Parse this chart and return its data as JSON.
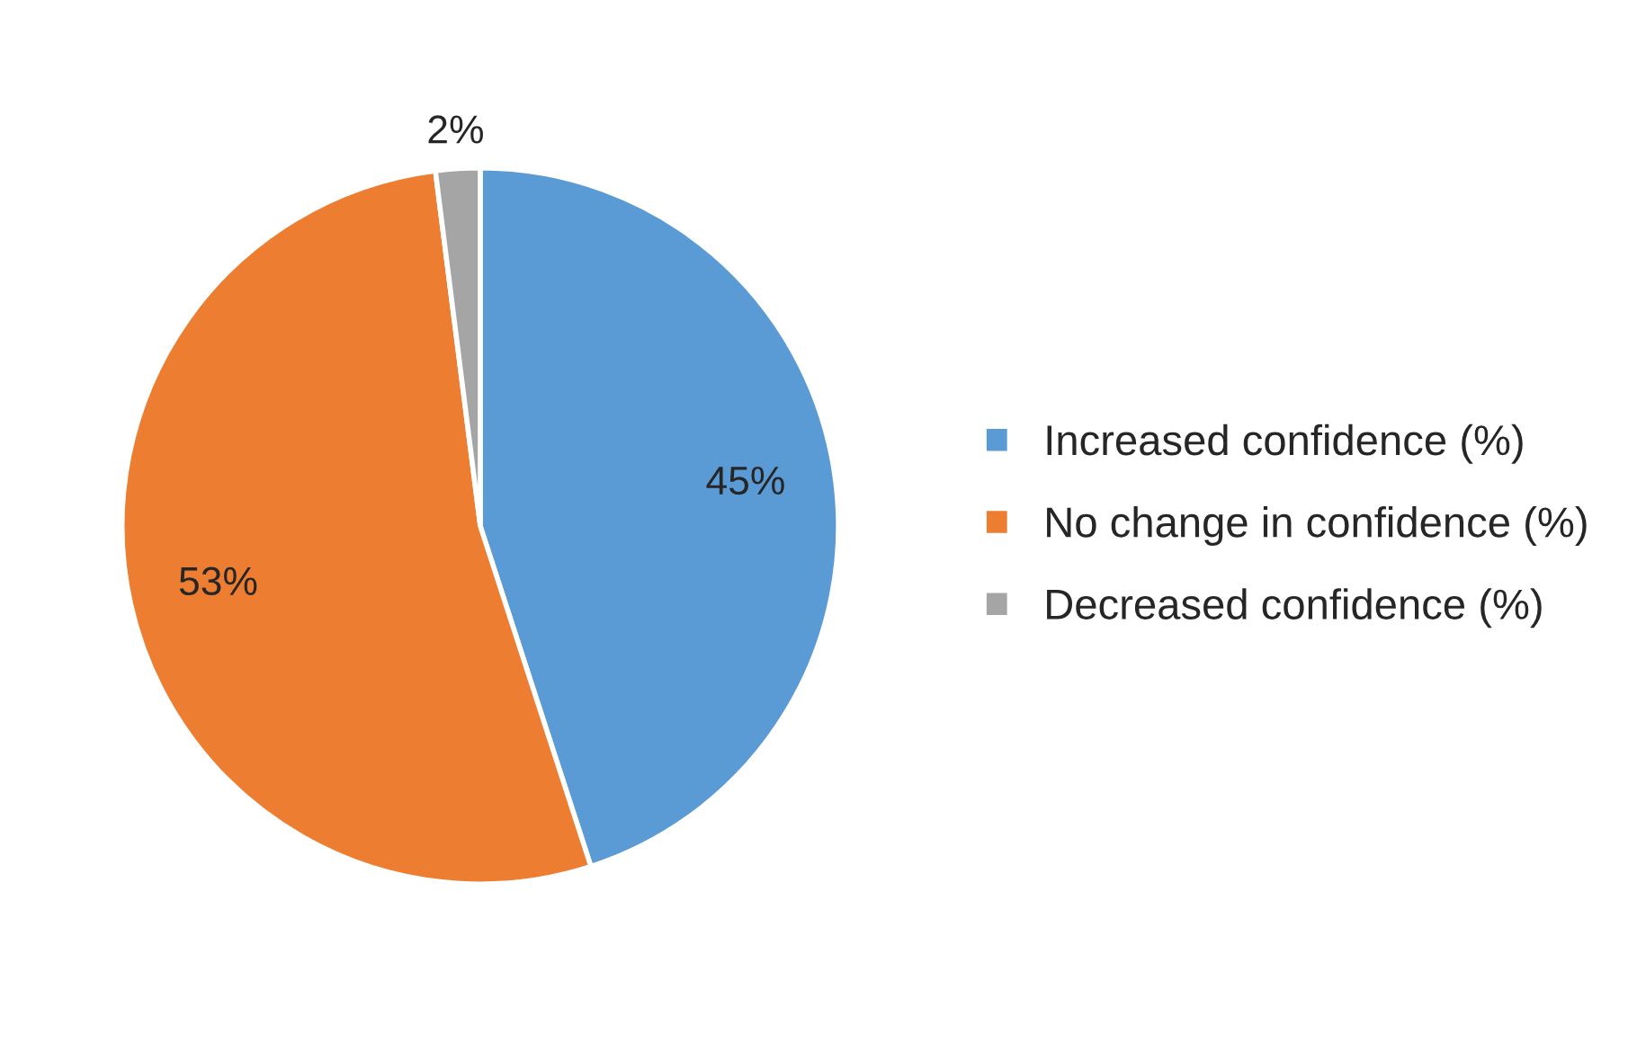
{
  "chart_data": {
    "type": "pie",
    "categories": [
      "Increased confidence (%)",
      "No change in confidence (%)",
      "Decreased confidence (%)"
    ],
    "values": [
      45,
      53,
      2
    ],
    "colors": [
      "#5b9bd5",
      "#ed7d31",
      "#a5a5a5"
    ],
    "value_labels": [
      "45%",
      "53%",
      "2%"
    ],
    "legend": "right"
  }
}
